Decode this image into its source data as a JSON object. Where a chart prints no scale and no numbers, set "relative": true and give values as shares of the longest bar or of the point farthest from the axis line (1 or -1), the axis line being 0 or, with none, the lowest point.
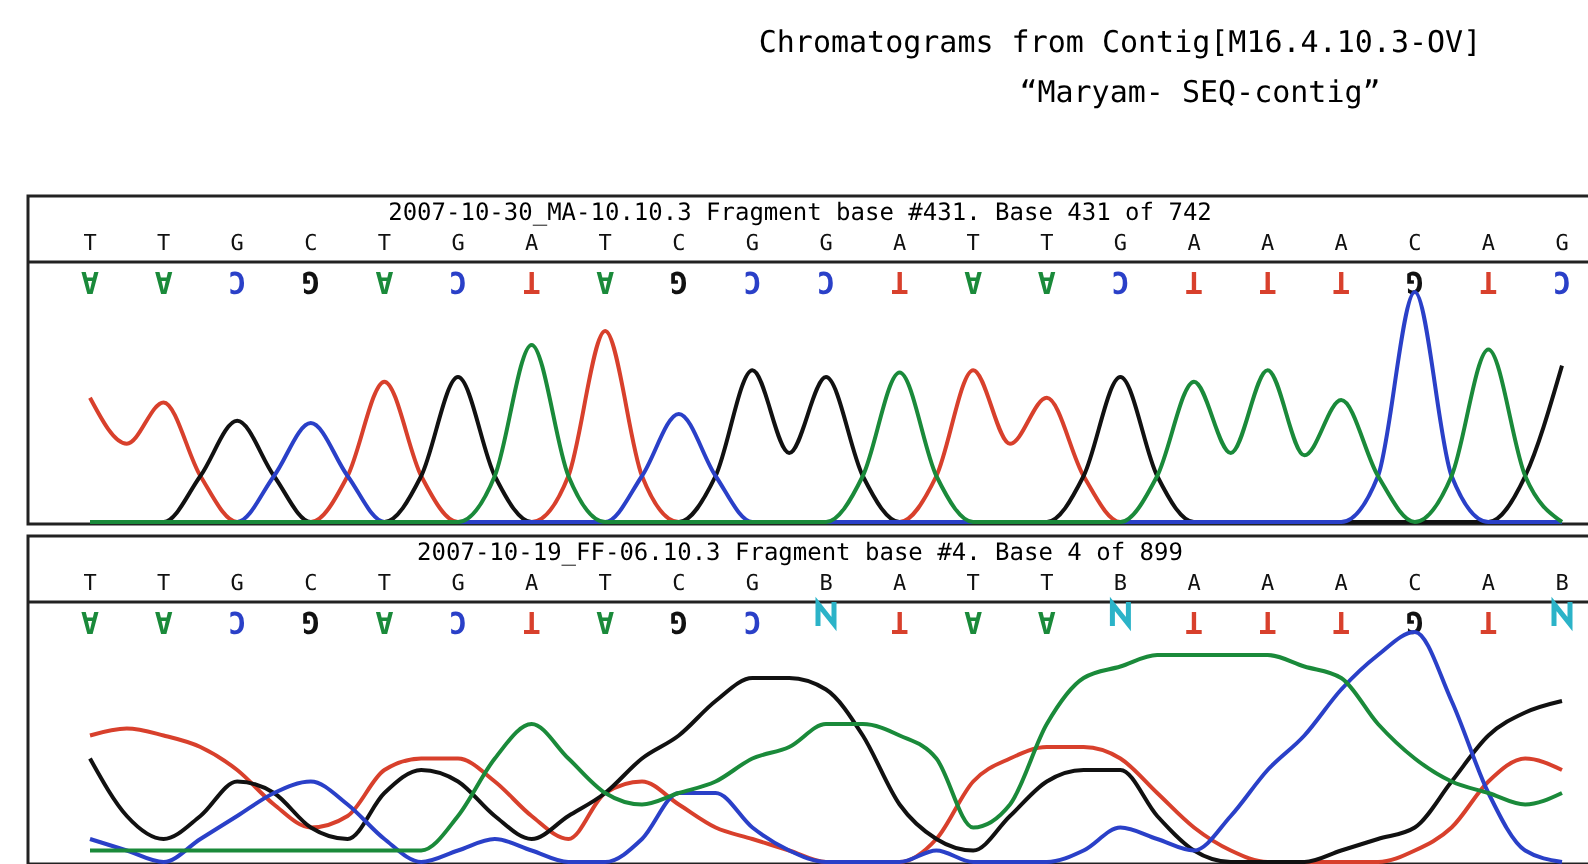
{
  "chart_data": [
    {
      "type": "line",
      "title": "Chromatograms from Contig[M16.4.10.3-OV]",
      "subtitle": "“Maryam- SEQ-contig”",
      "annotations": [
        "2007-10-30_MA-10.10.3 Fragment base #431. Base 431 of 742"
      ],
      "relative": true,
      "tick_labels": "x",
      "marker": "none",
      "categories": [
        "T",
        null,
        "T",
        null,
        "G",
        null,
        "C",
        null,
        "T",
        null,
        "G",
        null,
        "A",
        null,
        "T",
        null,
        "C",
        null,
        "G",
        null,
        "G",
        null,
        "A",
        null,
        "T",
        null,
        "T",
        null,
        "G",
        null,
        "A",
        null,
        "A",
        null,
        "A",
        null,
        "C",
        null,
        "A",
        null,
        "G"
      ],
      "series": [
        {
          "color": "#d8402c",
          "values": [
            0.54,
            0.34,
            0.52,
            0.2,
            0,
            0,
            0,
            0.2,
            0.61,
            0.2,
            0,
            0,
            0,
            0.2,
            0.83,
            0.2,
            0,
            0,
            0,
            0,
            0,
            0,
            0,
            0.2,
            0.66,
            0.34,
            0.54,
            0.2,
            0,
            0,
            null,
            null,
            null,
            null,
            null,
            null,
            null,
            null,
            null,
            null,
            null
          ]
        },
        {
          "color": "#111111",
          "values": [
            0,
            0,
            0,
            0.2,
            0.44,
            0.2,
            0,
            0,
            0,
            0.2,
            0.63,
            0.2,
            0,
            0,
            0,
            0,
            0,
            0.2,
            0.66,
            0.3,
            0.63,
            0.2,
            0,
            0,
            0,
            0,
            0,
            0.2,
            0.63,
            0.2,
            0,
            0,
            0,
            0,
            0,
            0,
            0,
            0,
            0,
            0.2,
            0.68
          ]
        },
        {
          "color": "#2a40c8",
          "values": [
            null,
            null,
            null,
            0,
            0,
            0.2,
            0.43,
            0.2,
            0,
            0,
            0,
            0,
            0,
            0,
            0,
            0.2,
            0.47,
            0.2,
            0,
            0,
            0,
            0,
            0,
            0,
            0,
            0,
            0,
            0,
            0,
            0,
            0,
            0,
            0,
            0,
            0,
            0.2,
            1,
            0.2,
            0,
            0,
            0
          ]
        },
        {
          "color": "#1a8a3a",
          "values": [
            0,
            0,
            0,
            0,
            0,
            0,
            0,
            0,
            0,
            0,
            0,
            0.2,
            0.77,
            0.2,
            0,
            0,
            0,
            0,
            0,
            0,
            0,
            0.2,
            0.65,
            0.2,
            0,
            0,
            0,
            0,
            0,
            0.2,
            0.61,
            0.3,
            0.66,
            0.29,
            0.53,
            0.2,
            0,
            0.2,
            0.75,
            0.2,
            0
          ]
        }
      ]
    },
    {
      "type": "line",
      "annotations": [
        "2007-10-19_FF-06.10.3 Fragment base #4. Base 4 of 899"
      ],
      "relative": true,
      "tick_labels": "x",
      "marker": "none",
      "categories": [
        "T",
        null,
        "T",
        null,
        "G",
        null,
        "C",
        null,
        "T",
        null,
        "G",
        null,
        "A",
        null,
        "T",
        null,
        "C",
        null,
        "G",
        null,
        "B",
        null,
        "A",
        null,
        "T",
        null,
        "T",
        null,
        "B",
        null,
        "A",
        null,
        "A",
        null,
        "A",
        null,
        "C",
        null,
        "A",
        null,
        "B"
      ],
      "series": [
        {
          "color": "#d8402c",
          "values": [
            0.55,
            0.58,
            0.55,
            0.5,
            0.4,
            0.25,
            0.15,
            0.2,
            0.4,
            0.45,
            0.45,
            0.35,
            0.2,
            0.1,
            0.3,
            0.35,
            0.25,
            0.15,
            0.1,
            0.05,
            0,
            0,
            0,
            0.1,
            0.35,
            0.45,
            0.5,
            0.5,
            0.45,
            0.3,
            0.15,
            0.05,
            0,
            0,
            0,
            0,
            0.05,
            0.15,
            0.35,
            0.45,
            0.4
          ]
        },
        {
          "color": "#111111",
          "values": [
            0.45,
            0.2,
            0.1,
            0.2,
            0.35,
            0.3,
            0.15,
            0.1,
            0.3,
            0.4,
            0.35,
            0.2,
            0.1,
            0.2,
            0.3,
            0.45,
            0.55,
            0.7,
            0.8,
            0.8,
            0.75,
            0.55,
            0.25,
            0.1,
            0.05,
            0.2,
            0.35,
            0.4,
            0.4,
            0.2,
            0.05,
            0,
            0,
            0,
            0.05,
            0.1,
            0.15,
            0.35,
            0.55,
            0.65,
            0.7
          ]
        },
        {
          "color": "#2a40c8",
          "values": [
            0.1,
            0.05,
            0,
            0.1,
            0.2,
            0.3,
            0.35,
            0.25,
            0.1,
            0,
            0.05,
            0.1,
            0.05,
            0,
            0,
            0.1,
            0.3,
            0.3,
            0.15,
            0.05,
            0,
            0,
            0,
            0.05,
            0,
            0,
            0,
            0.05,
            0.15,
            0.1,
            0.05,
            0.2,
            0.4,
            0.55,
            0.75,
            0.9,
            1,
            0.7,
            0.3,
            0.05,
            0
          ]
        },
        {
          "color": "#1a8a3a",
          "values": [
            0.05,
            0.05,
            0.05,
            0.05,
            0.05,
            0.05,
            0.05,
            0.05,
            0.05,
            0.05,
            0.2,
            0.45,
            0.6,
            0.45,
            0.3,
            0.25,
            0.3,
            0.35,
            0.45,
            0.5,
            0.6,
            0.6,
            0.55,
            0.45,
            0.15,
            0.25,
            0.6,
            0.8,
            0.85,
            0.9,
            0.9,
            0.9,
            0.9,
            0.85,
            0.8,
            0.6,
            0.45,
            0.35,
            0.3,
            0.25,
            0.3
          ]
        }
      ]
    }
  ]
}
